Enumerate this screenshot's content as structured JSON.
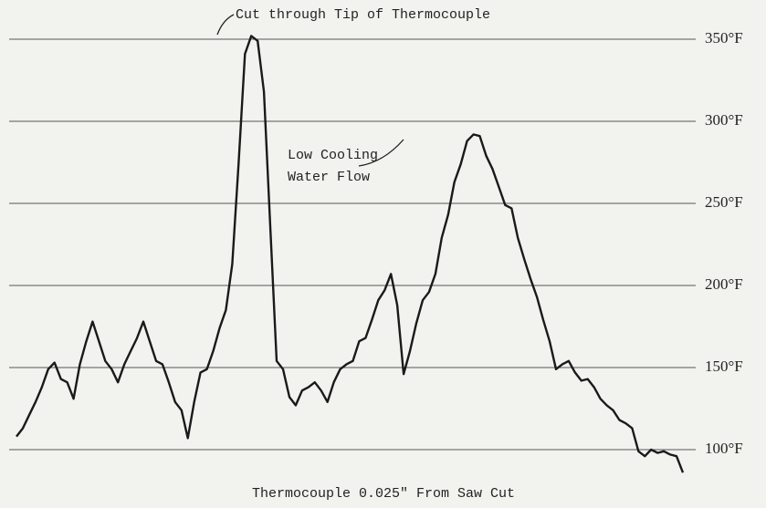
{
  "chart_data": {
    "type": "line",
    "title": "Thermocouple  0.025\" From Saw Cut",
    "annotations": [
      "Cut through Tip of Thermocouple",
      "Low Cooling",
      "Water Flow"
    ],
    "series": [
      {
        "color": "#1a1a1a",
        "values": [
          108,
          113,
          121,
          129,
          138,
          149,
          153,
          143,
          141,
          131,
          152,
          166,
          178,
          166,
          154,
          149,
          141,
          152,
          160,
          168,
          178,
          166,
          154,
          152,
          141,
          129,
          124,
          107,
          129,
          147,
          149,
          160,
          174,
          185,
          213,
          274,
          341,
          352,
          349,
          318,
          235,
          154,
          149,
          132,
          127,
          136,
          138,
          141,
          136,
          129,
          141,
          149,
          152,
          154,
          166,
          168,
          179,
          191,
          197,
          207,
          188,
          146,
          160,
          177,
          191,
          196,
          207,
          229,
          243,
          263,
          274,
          288,
          292,
          291,
          279,
          271,
          260,
          249,
          247,
          229,
          216,
          204,
          193,
          179,
          166,
          149,
          152,
          154,
          147,
          142,
          143,
          138,
          131,
          127,
          124,
          118,
          116,
          113,
          99,
          96,
          100,
          98,
          99,
          97,
          96,
          86
        ]
      }
    ],
    "ylim": [
      80,
      360
    ],
    "yticks": [
      {
        "value": 100,
        "label": "100°F"
      },
      {
        "value": 150,
        "label": "150°F"
      },
      {
        "value": 200,
        "label": "200°F"
      },
      {
        "value": 250,
        "label": "250°F"
      },
      {
        "value": 300,
        "label": "300°F"
      },
      {
        "value": 350,
        "label": "350°F"
      }
    ],
    "grid": true
  }
}
